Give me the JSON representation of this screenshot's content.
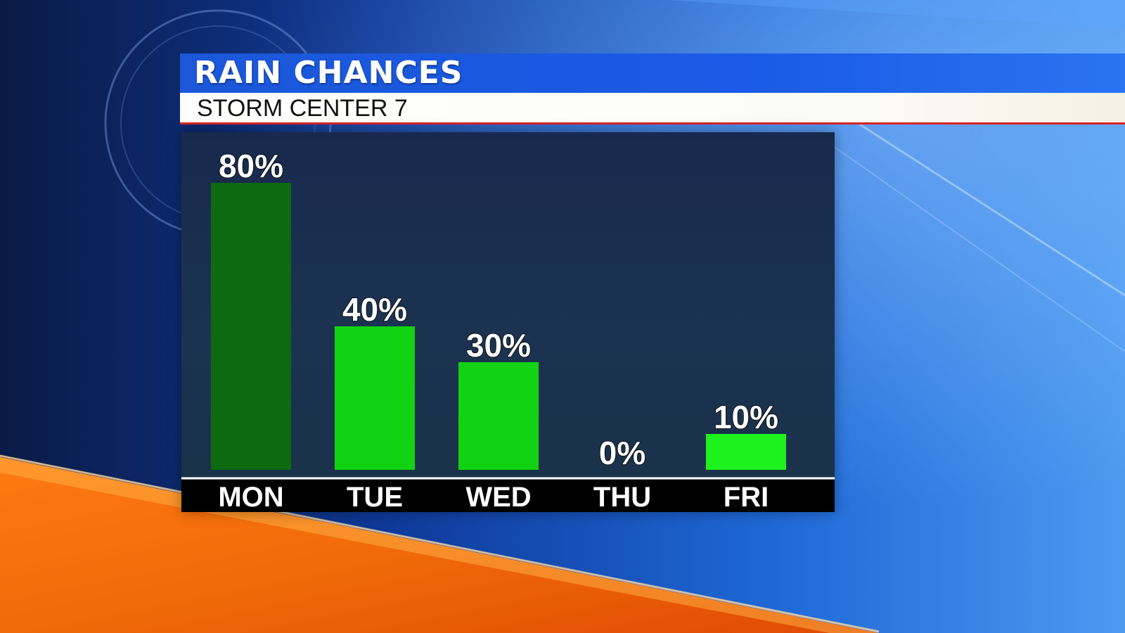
{
  "header": {
    "title": "RAIN CHANCES",
    "subtitle": "STORM CENTER 7"
  },
  "colors": {
    "title_bar": "#1b57d8",
    "accent_line": "#d8252a",
    "bar_dark": "#0e6a10",
    "bar_bright": "#12d312"
  },
  "chart_data": {
    "type": "bar",
    "title": "RAIN CHANCES",
    "categories": [
      "MON",
      "TUE",
      "WED",
      "THU",
      "FRI"
    ],
    "values": [
      80,
      40,
      30,
      0,
      10
    ],
    "value_labels": [
      "80%",
      "40%",
      "30%",
      "0%",
      "10%"
    ],
    "bar_colors": [
      "#0e6a10",
      "#12d312",
      "#12d312",
      "#12d312",
      "#1ef21e"
    ],
    "ylim": [
      0,
      100
    ],
    "xlabel": "",
    "ylabel": "",
    "grid": false
  }
}
